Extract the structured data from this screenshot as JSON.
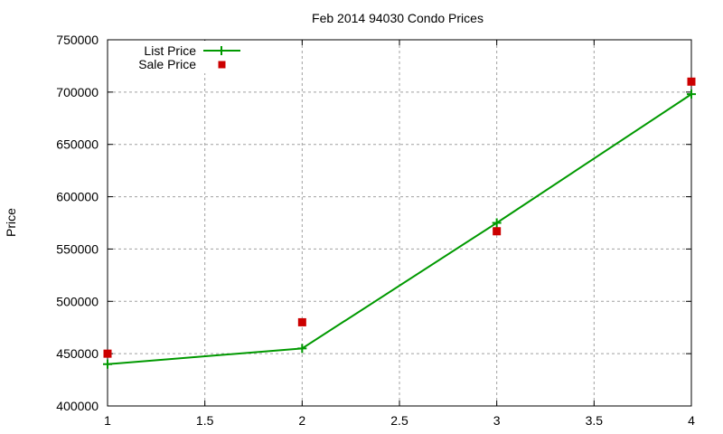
{
  "chart_data": {
    "type": "line",
    "title": "Feb 2014 94030 Condo Prices",
    "xlabel": "",
    "ylabel": "Price",
    "xlim": [
      1,
      4
    ],
    "ylim": [
      400000,
      750000
    ],
    "x_ticks": [
      "1",
      "1.5",
      "2",
      "2.5",
      "3",
      "3.5",
      "4"
    ],
    "x_tick_values": [
      1,
      1.5,
      2,
      2.5,
      3,
      3.5,
      4
    ],
    "y_ticks": [
      "400000",
      "450000",
      "500000",
      "550000",
      "600000",
      "650000",
      "700000",
      "750000"
    ],
    "y_tick_values": [
      400000,
      450000,
      500000,
      550000,
      600000,
      650000,
      700000,
      750000
    ],
    "grid": true,
    "legend_position": "top-left",
    "x": [
      1,
      2,
      3,
      4
    ],
    "series": [
      {
        "name": "List Price",
        "style": "lines+points",
        "marker": "plus",
        "color": "#009900",
        "values": [
          440000,
          455000,
          575000,
          698000
        ]
      },
      {
        "name": "Sale Price",
        "style": "points",
        "marker": "square",
        "color": "#cc0000",
        "values": [
          450000,
          480000,
          567000,
          710000
        ]
      }
    ]
  }
}
